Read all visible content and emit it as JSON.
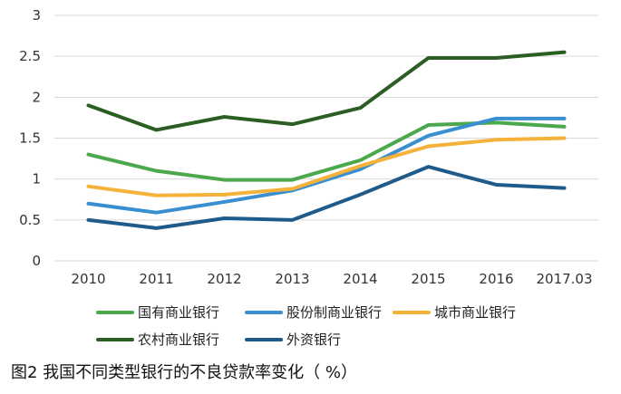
{
  "chart_data": {
    "type": "line",
    "x": [
      "2010",
      "2011",
      "2012",
      "2013",
      "2014",
      "2015",
      "2016",
      "2017.03"
    ],
    "ylim": [
      0,
      3
    ],
    "yticks": [
      "0",
      "0.5",
      "1",
      "1.5",
      "2",
      "2.5",
      "3"
    ],
    "grid": true,
    "legend_position": "bottom",
    "series": [
      {
        "name": "国有商业银行",
        "color": "#4CA84C",
        "values": [
          1.3,
          1.1,
          0.99,
          0.99,
          1.23,
          1.66,
          1.69,
          1.64
        ]
      },
      {
        "name": "股份制商业银行",
        "color": "#3A8FD0",
        "values": [
          0.7,
          0.59,
          0.72,
          0.86,
          1.12,
          1.53,
          1.74,
          1.74
        ]
      },
      {
        "name": "城市商业银行",
        "color": "#F5B23A",
        "values": [
          0.91,
          0.8,
          0.81,
          0.88,
          1.16,
          1.4,
          1.48,
          1.5
        ]
      },
      {
        "name": "农村商业银行",
        "color": "#2B5E22",
        "values": [
          1.9,
          1.6,
          1.76,
          1.67,
          1.87,
          2.48,
          2.48,
          2.55
        ]
      },
      {
        "name": "外资银行",
        "color": "#1F5B8A",
        "values": [
          0.5,
          0.4,
          0.52,
          0.5,
          0.81,
          1.15,
          0.93,
          0.89
        ]
      }
    ],
    "caption": "图2 我国不同类型银行的不良贷款率变化（ %）"
  }
}
